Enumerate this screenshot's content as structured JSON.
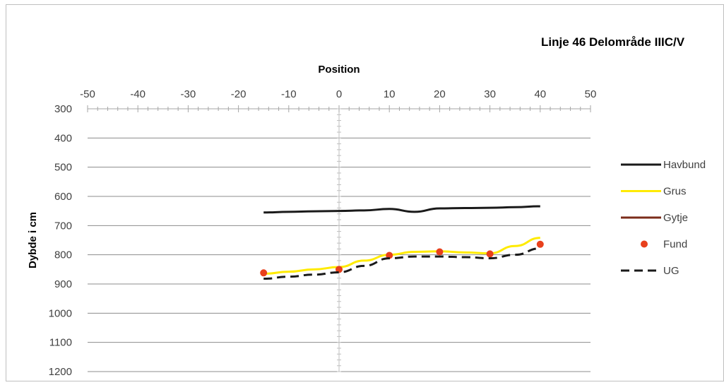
{
  "chart_data": {
    "type": "line",
    "title": "Linje 46 Delområde IIIC/V",
    "xlabel": "Position",
    "ylabel": "Dybde i cm",
    "x_axis_position": "top",
    "y_reversed": true,
    "xlim": [
      -50,
      50
    ],
    "ylim": [
      300,
      1200
    ],
    "x_ticks": [
      "-50",
      "-40",
      "-30",
      "-20",
      "-10",
      "0",
      "10",
      "20",
      "30",
      "40",
      "50"
    ],
    "y_ticks": [
      "300",
      "400",
      "500",
      "600",
      "700",
      "800",
      "900",
      "1000",
      "1100",
      "1200"
    ],
    "grid": "horizontal",
    "legend_position": "right",
    "series": [
      {
        "name": "Havbund",
        "kind": "line",
        "color": "#1a1a1a",
        "dash": "solid",
        "x": [
          -15,
          -10,
          -5,
          0,
          5,
          10,
          15,
          20,
          25,
          30,
          35,
          40
        ],
        "y": [
          655,
          653,
          651,
          650,
          648,
          643,
          653,
          641,
          640,
          639,
          637,
          634
        ]
      },
      {
        "name": "Grus",
        "kind": "line",
        "color": "#ffeb00",
        "dash": "solid",
        "x": [
          -15,
          -10,
          -5,
          0,
          5,
          10,
          15,
          20,
          25,
          30,
          35,
          40
        ],
        "y": [
          865,
          858,
          850,
          842,
          820,
          800,
          790,
          788,
          792,
          795,
          770,
          742
        ]
      },
      {
        "name": "Gytje",
        "kind": "line",
        "color": "#7b2c1a",
        "dash": "solid",
        "x": [],
        "y": []
      },
      {
        "name": "Fund",
        "kind": "scatter",
        "color": "#e8401c",
        "x": [
          -15,
          0,
          10,
          20,
          30,
          40
        ],
        "y": [
          862,
          850,
          802,
          790,
          797,
          764
        ]
      },
      {
        "name": "UG",
        "kind": "line",
        "color": "#1a1a1a",
        "dash": "dashed",
        "x": [
          -15,
          -10,
          -5,
          0,
          5,
          10,
          15,
          20,
          25,
          30,
          35,
          40
        ],
        "y": [
          882,
          875,
          868,
          860,
          838,
          812,
          806,
          806,
          808,
          812,
          800,
          778
        ]
      }
    ]
  }
}
